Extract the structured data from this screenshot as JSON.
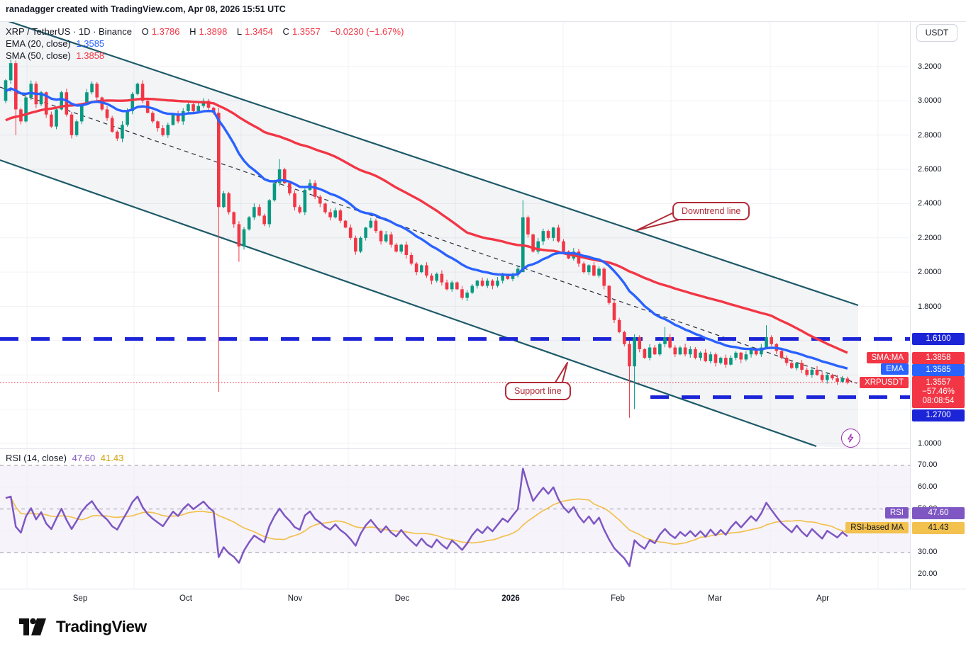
{
  "header": {
    "watermark": "ranadagger created with TradingView.com, Apr 08, 2026 15:51 UTC"
  },
  "symbol_legend": {
    "title": "XRP / TetherUS · 1D · Binance",
    "o_label": "O",
    "o": "1.3786",
    "h_label": "H",
    "h": "1.3898",
    "l_label": "L",
    "l": "1.3454",
    "c_label": "C",
    "c": "1.3557",
    "change": "−0.0230 (−1.67%)"
  },
  "indicators": {
    "ema": {
      "label": "EMA (20, close)",
      "value": "1.3585"
    },
    "sma": {
      "label": "SMA (50, close)",
      "value": "1.3858"
    }
  },
  "rsi_legend": {
    "label": "RSI (14, close)",
    "value": "47.60",
    "ma_value": "41.43"
  },
  "axis": {
    "currency": "USDT",
    "price_ticks": [
      "3.2000",
      "3.0000",
      "2.8000",
      "2.6000",
      "2.4000",
      "2.2000",
      "2.0000",
      "1.8000",
      "1.0000"
    ],
    "rsi_ticks": [
      "70.00",
      "60.00",
      "50.00",
      "30.00",
      "20.00"
    ]
  },
  "badges": {
    "level_upper": "1.6100",
    "level_lower": "1.2700",
    "sma_label": "SMA:MA",
    "sma_value": "1.3858",
    "ema_label": "EMA",
    "ema_value": "1.3585",
    "price_label": "XRPUSDT",
    "price_value": "1.3557",
    "price_change": "−57.46%",
    "price_countdown": "08:08:54",
    "rsi_label": "RSI",
    "rsi_value": "47.60",
    "rsi_ma_label": "RSI-based MA",
    "rsi_ma_value": "41.43"
  },
  "annotations": {
    "downtrend": "Downtrend line",
    "support": "Support line"
  },
  "time_axis": [
    "Sep",
    "Oct",
    "Nov",
    "Dec",
    "2026",
    "Feb",
    "Mar",
    "Apr"
  ],
  "logo": {
    "text": "TradingView"
  },
  "colors": {
    "up": "#089981",
    "down": "#f23645",
    "ema_line": "#2962ff",
    "sma_line": "#f23645",
    "channel": "#1d5a68",
    "channel_fill": "rgba(125,135,150,0.09)",
    "level_blue": "#1c24d8",
    "price_line": "#f23645",
    "rsi_line": "#7e57c2",
    "rsi_ma_line": "#f2c14e",
    "rsi_band": "rgba(126,87,194,0.07)",
    "callout": "#b02c38",
    "grid": "#f0f2f6",
    "dashed_mid": "#2a2e39",
    "badge_red": "#f23645",
    "badge_blue": "#2962ff",
    "badge_purple": "#7e57c2",
    "badge_yellow": "#f2c14e"
  },
  "chart_data": {
    "type": "candlestick",
    "symbol": "XRPUSDT",
    "interval": "1D",
    "exchange": "Binance",
    "price_axis_range": [
      1.0,
      3.35
    ],
    "rsi_axis_range": [
      13,
      78
    ],
    "values_estimated_from_pixels": true,
    "last_candle": {
      "open": 1.3786,
      "high": 1.3898,
      "low": 1.3454,
      "close": 1.3557,
      "change": -0.023,
      "change_pct": -1.67
    },
    "horizontal_levels": [
      1.61,
      1.27
    ],
    "current_price_line": 1.3557,
    "ema20_current": 1.3585,
    "sma50_current": 1.3858,
    "rsi": {
      "period": 14,
      "current": 47.6,
      "ma_current": 41.43,
      "overbought": 70,
      "midline": 50,
      "oversold": 30
    },
    "drawn_channel": {
      "description": "descending parallel channel with dashed midline",
      "slope_price_per_bar": -0.0088
    },
    "closes": [
      3.12,
      3.22,
      2.95,
      2.88,
      3.02,
      3.1,
      2.98,
      3.05,
      2.92,
      2.85,
      2.95,
      3.05,
      2.92,
      2.8,
      2.88,
      2.98,
      3.05,
      3.1,
      3.02,
      2.95,
      2.9,
      2.82,
      2.78,
      2.86,
      2.94,
      3.04,
      3.1,
      3.0,
      2.93,
      2.88,
      2.84,
      2.8,
      2.86,
      2.92,
      2.88,
      2.94,
      2.98,
      2.94,
      2.97,
      3.0,
      2.96,
      2.93,
      2.38,
      2.46,
      2.35,
      2.28,
      2.15,
      2.25,
      2.32,
      2.38,
      2.33,
      2.28,
      2.42,
      2.52,
      2.6,
      2.52,
      2.46,
      2.38,
      2.35,
      2.48,
      2.52,
      2.44,
      2.4,
      2.35,
      2.32,
      2.36,
      2.3,
      2.26,
      2.2,
      2.12,
      2.2,
      2.26,
      2.3,
      2.24,
      2.18,
      2.22,
      2.16,
      2.12,
      2.16,
      2.1,
      2.05,
      2.0,
      2.04,
      1.98,
      1.95,
      1.99,
      1.94,
      1.9,
      1.94,
      1.9,
      1.85,
      1.88,
      1.92,
      1.95,
      1.92,
      1.95,
      1.92,
      1.95,
      1.98,
      1.96,
      1.99,
      2.02,
      2.32,
      2.22,
      2.12,
      2.18,
      2.24,
      2.2,
      2.26,
      2.18,
      2.12,
      2.08,
      2.12,
      2.05,
      2.0,
      2.04,
      1.98,
      2.02,
      1.92,
      1.82,
      1.72,
      1.65,
      1.58,
      1.45,
      1.62,
      1.55,
      1.5,
      1.56,
      1.52,
      1.58,
      1.62,
      1.56,
      1.52,
      1.56,
      1.52,
      1.55,
      1.5,
      1.53,
      1.48,
      1.52,
      1.47,
      1.5,
      1.46,
      1.5,
      1.53,
      1.49,
      1.52,
      1.55,
      1.52,
      1.56,
      1.62,
      1.58,
      1.54,
      1.5,
      1.47,
      1.44,
      1.47,
      1.43,
      1.4,
      1.43,
      1.4,
      1.37,
      1.4,
      1.38,
      1.36,
      1.3786,
      1.3557
    ],
    "specials": {
      "2": {
        "l": 2.8
      },
      "42": {
        "o": 2.93,
        "h": 2.96,
        "l": 1.3
      },
      "46": {
        "l": 2.06
      },
      "54": {
        "h": 2.66
      },
      "102": {
        "o": 2.0,
        "h": 2.42
      },
      "123": {
        "o": 1.58,
        "h": 1.6,
        "l": 1.15
      },
      "124": {
        "l": 1.2
      },
      "130": {
        "h": 1.68
      },
      "150": {
        "h": 1.69
      },
      "166": {
        "o": 1.3786,
        "h": 1.3898,
        "l": 1.3454,
        "c": 1.3557
      }
    }
  }
}
